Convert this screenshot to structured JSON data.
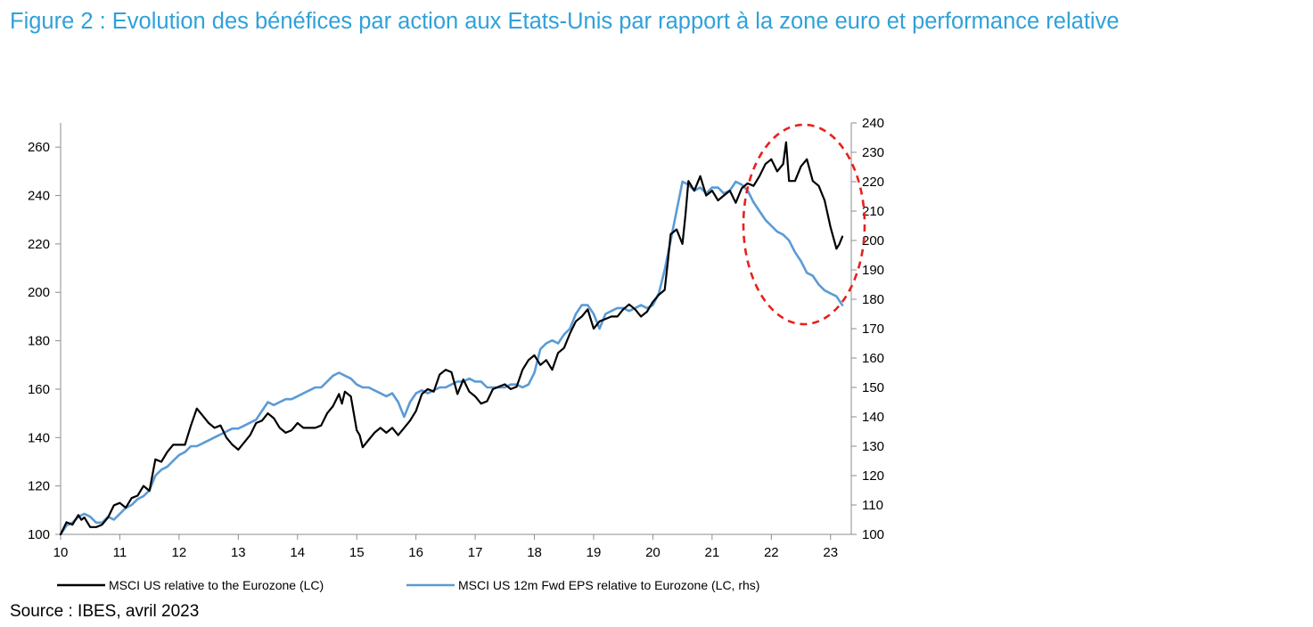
{
  "title": "Figure 2 : Evolution des bénéfices par action aux Etats-Unis par rapport à la zone euro et performance relative",
  "source": "Source : IBES, avril 2023",
  "chart_data": {
    "type": "line",
    "xlabel": "",
    "ylabel": "",
    "x_ticks": [
      "10",
      "11",
      "12",
      "13",
      "14",
      "15",
      "16",
      "17",
      "18",
      "19",
      "20",
      "21",
      "22",
      "23"
    ],
    "xlim": [
      10,
      23.35
    ],
    "y_left_ticks": [
      "100",
      "120",
      "140",
      "160",
      "180",
      "200",
      "220",
      "240",
      "260"
    ],
    "y_left_lim": [
      100,
      270
    ],
    "y_right_ticks": [
      "100",
      "110",
      "120",
      "130",
      "140",
      "150",
      "160",
      "170",
      "180",
      "190",
      "200",
      "210",
      "220",
      "230",
      "240"
    ],
    "y_right_lim": [
      100,
      240
    ],
    "grid": false,
    "legend_position": "bottom",
    "annotation": "red dashed ellipse highlighting 2022-2023",
    "series": [
      {
        "name": "MSCI US relative to the Eurozone (LC)",
        "axis": "left",
        "color": "#000000",
        "x": [
          10.0,
          10.1,
          10.2,
          10.3,
          10.35,
          10.4,
          10.5,
          10.6,
          10.7,
          10.8,
          10.9,
          11.0,
          11.1,
          11.2,
          11.3,
          11.4,
          11.5,
          11.6,
          11.7,
          11.8,
          11.9,
          12.0,
          12.1,
          12.2,
          12.3,
          12.4,
          12.5,
          12.6,
          12.7,
          12.8,
          12.9,
          13.0,
          13.1,
          13.2,
          13.3,
          13.4,
          13.5,
          13.6,
          13.7,
          13.8,
          13.9,
          14.0,
          14.1,
          14.2,
          14.3,
          14.4,
          14.5,
          14.6,
          14.7,
          14.75,
          14.8,
          14.9,
          15.0,
          15.05,
          15.1,
          15.2,
          15.3,
          15.4,
          15.5,
          15.6,
          15.7,
          15.8,
          15.9,
          16.0,
          16.1,
          16.2,
          16.3,
          16.4,
          16.5,
          16.6,
          16.7,
          16.8,
          16.9,
          17.0,
          17.1,
          17.2,
          17.3,
          17.4,
          17.5,
          17.6,
          17.7,
          17.8,
          17.9,
          18.0,
          18.1,
          18.2,
          18.3,
          18.4,
          18.5,
          18.6,
          18.7,
          18.8,
          18.9,
          19.0,
          19.1,
          19.2,
          19.3,
          19.4,
          19.5,
          19.6,
          19.7,
          19.8,
          19.9,
          20.0,
          20.1,
          20.2,
          20.25,
          20.3,
          20.4,
          20.5,
          20.55,
          20.6,
          20.7,
          20.8,
          20.9,
          21.0,
          21.1,
          21.2,
          21.3,
          21.4,
          21.5,
          21.6,
          21.7,
          21.8,
          21.9,
          22.0,
          22.1,
          22.2,
          22.25,
          22.3,
          22.4,
          22.5,
          22.6,
          22.7,
          22.8,
          22.9,
          23.0,
          23.1,
          23.15,
          23.2
        ],
        "values": [
          100,
          105,
          104,
          108,
          106,
          107,
          103,
          103,
          104,
          107,
          112,
          113,
          111,
          115,
          116,
          120,
          118,
          131,
          130,
          134,
          137,
          137,
          137,
          145,
          152,
          149,
          146,
          144,
          145,
          140,
          137,
          135,
          138,
          141,
          146,
          147,
          150,
          148,
          144,
          142,
          143,
          146,
          144,
          144,
          144,
          145,
          150,
          153,
          158,
          154,
          159,
          157,
          143,
          141,
          136,
          139,
          142,
          144,
          142,
          144,
          141,
          144,
          147,
          151,
          158,
          160,
          159,
          166,
          168,
          167,
          158,
          164,
          159,
          157,
          154,
          155,
          160,
          161,
          162,
          160,
          161,
          168,
          172,
          174,
          170,
          172,
          168,
          175,
          177,
          183,
          188,
          190,
          193,
          185,
          188,
          189,
          190,
          190,
          193,
          195,
          193,
          190,
          192,
          196,
          199,
          201,
          212,
          224,
          226,
          220,
          232,
          246,
          242,
          248,
          240,
          242,
          238,
          240,
          242,
          237,
          243,
          245,
          244,
          248,
          253,
          255,
          250,
          253,
          262,
          246,
          246,
          252,
          255,
          246,
          244,
          238,
          227,
          218,
          220,
          223
        ]
      },
      {
        "name": "MSCI US 12m Fwd EPS relative to Eurozone (LC, rhs)",
        "axis": "right",
        "color": "#5B9BD5",
        "x": [
          10.0,
          10.1,
          10.2,
          10.3,
          10.4,
          10.5,
          10.6,
          10.7,
          10.8,
          10.9,
          11.0,
          11.1,
          11.2,
          11.3,
          11.4,
          11.5,
          11.6,
          11.7,
          11.8,
          11.9,
          12.0,
          12.1,
          12.2,
          12.3,
          12.4,
          12.5,
          12.6,
          12.7,
          12.8,
          12.9,
          13.0,
          13.1,
          13.2,
          13.3,
          13.4,
          13.5,
          13.6,
          13.7,
          13.8,
          13.9,
          14.0,
          14.1,
          14.2,
          14.3,
          14.4,
          14.5,
          14.6,
          14.7,
          14.8,
          14.9,
          15.0,
          15.1,
          15.2,
          15.3,
          15.4,
          15.5,
          15.6,
          15.7,
          15.8,
          15.9,
          16.0,
          16.1,
          16.2,
          16.3,
          16.4,
          16.5,
          16.6,
          16.7,
          16.8,
          16.9,
          17.0,
          17.1,
          17.2,
          17.3,
          17.4,
          17.5,
          17.6,
          17.7,
          17.8,
          17.9,
          18.0,
          18.1,
          18.2,
          18.3,
          18.4,
          18.5,
          18.6,
          18.7,
          18.8,
          18.9,
          19.0,
          19.1,
          19.2,
          19.3,
          19.4,
          19.5,
          19.6,
          19.7,
          19.8,
          19.9,
          20.0,
          20.1,
          20.2,
          20.3,
          20.4,
          20.5,
          20.6,
          20.7,
          20.8,
          20.9,
          21.0,
          21.1,
          21.2,
          21.3,
          21.4,
          21.5,
          21.6,
          21.7,
          21.8,
          21.9,
          22.0,
          22.1,
          22.2,
          22.3,
          22.4,
          22.5,
          22.6,
          22.7,
          22.8,
          22.9,
          23.0,
          23.1,
          23.2
        ],
        "values": [
          100,
          103,
          104,
          106,
          107,
          106,
          104,
          104,
          106,
          105,
          107,
          109,
          110,
          112,
          113,
          115,
          120,
          122,
          123,
          125,
          127,
          128,
          130,
          130,
          131,
          132,
          133,
          134,
          135,
          136,
          136,
          137,
          138,
          139,
          142,
          145,
          144,
          145,
          146,
          146,
          147,
          148,
          149,
          150,
          150,
          152,
          154,
          155,
          154,
          153,
          151,
          150,
          150,
          149,
          148,
          147,
          148,
          145,
          140,
          145,
          148,
          149,
          148,
          149,
          150,
          150,
          151,
          152,
          152,
          153,
          152,
          152,
          150,
          150,
          150,
          150,
          151,
          151,
          150,
          151,
          155,
          163,
          165,
          166,
          165,
          168,
          170,
          175,
          178,
          178,
          175,
          170,
          175,
          176,
          177,
          177,
          176,
          177,
          178,
          177,
          178,
          182,
          190,
          200,
          210,
          220,
          219,
          217,
          218,
          216,
          218,
          218,
          216,
          217,
          220,
          219,
          217,
          213,
          210,
          207,
          205,
          203,
          202,
          200,
          196,
          193,
          189,
          188,
          185,
          183,
          182,
          181,
          178
        ]
      }
    ]
  }
}
